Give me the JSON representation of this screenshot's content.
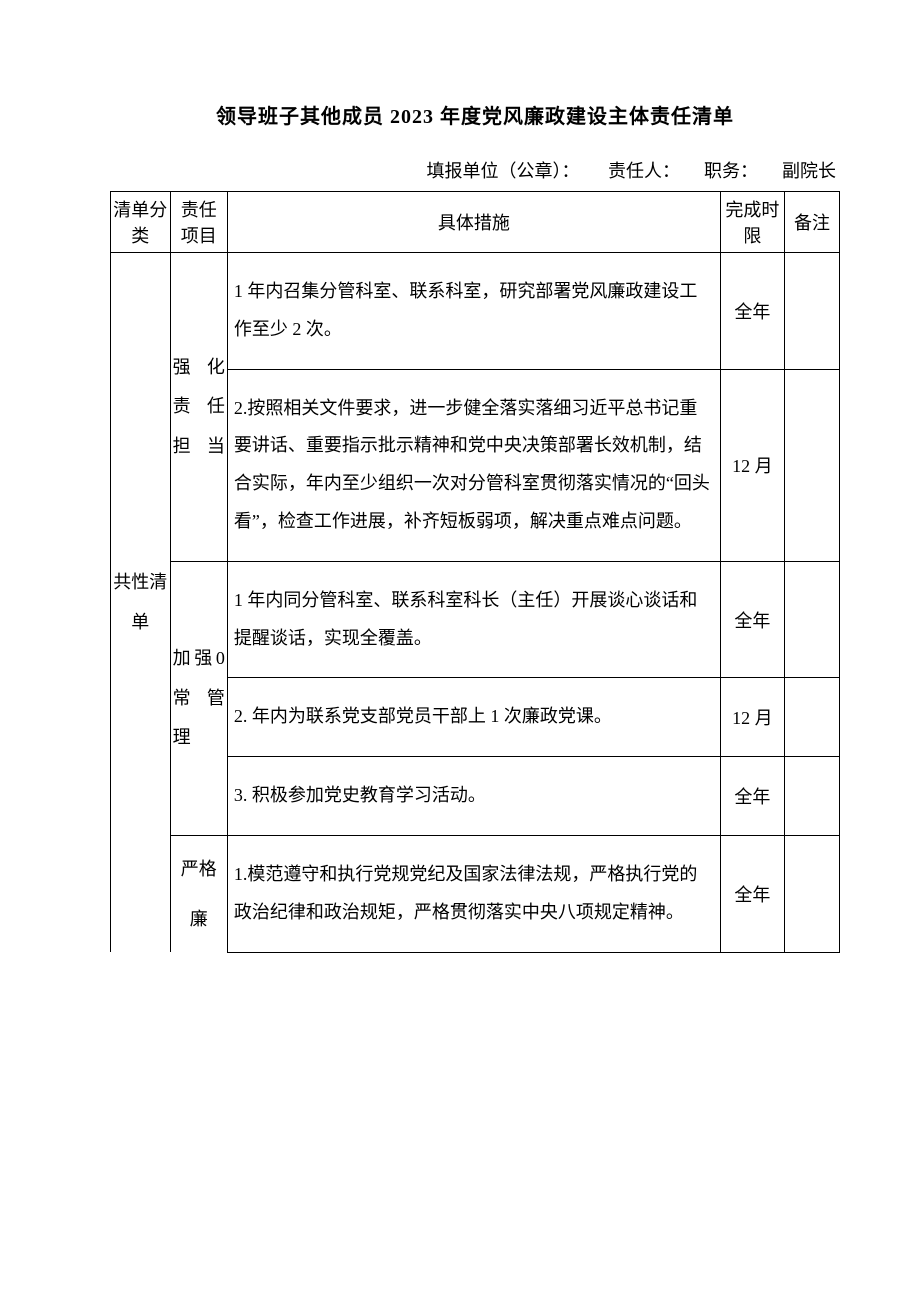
{
  "title": "领导班子其他成员 2023 年度党风廉政建设主体责任清单",
  "subtitle": {
    "unit_label": "填报单位（公章）：",
    "person_label": "责任人：",
    "position_label": "职务：",
    "position_value": "副院长"
  },
  "headers": {
    "category": "清单分类",
    "project": "责任项目",
    "measure": "具体措施",
    "deadline": "完成时限",
    "remark": "备注"
  },
  "category": "共性清单",
  "projects": {
    "p1": "强化责任担当",
    "p2": "加强0常管理",
    "p3": "严格廉"
  },
  "measures": {
    "m1": "1 年内召集分管科室、联系科室，研究部署党风廉政建设工作至少 2 次。",
    "m2": "2.按照相关文件要求，进一步健全落实落细习近平总书记重要讲话、重要指示批示精神和党中央决策部署长效机制，结合实际，年内至少组织一次对分管科室贯彻落实情况的“回头看”，检查工作进展，补齐短板弱项，解决重点难点问题。",
    "m3": "1 年内同分管科室、联系科室科长（主任）开展谈心谈话和提醒谈话，实现全覆盖。",
    "m4": "2. 年内为联系党支部党员干部上 1 次廉政党课。",
    "m5": "3. 积极参加党史教育学习活动。",
    "m6": "1.模范遵守和执行党规党纪及国家法律法规，严格执行党的政治纪律和政治规矩，严格贯彻落实中央八项规定精神。"
  },
  "deadlines": {
    "d1": "全年",
    "d2": "12 月",
    "d3": "全年",
    "d4": "12 月",
    "d5": "全年",
    "d6": "全年"
  }
}
